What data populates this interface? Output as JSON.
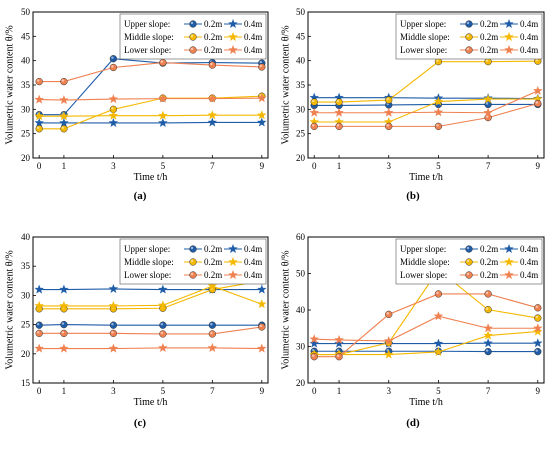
{
  "colors": {
    "blue": "#1f5ca8",
    "yellow": "#f5b800",
    "orange": "#ef8050"
  },
  "legend": {
    "rows": [
      {
        "label": "Upper  slope:",
        "color": "#1f5ca8"
      },
      {
        "label": "Middle slope:",
        "color": "#f5b800"
      },
      {
        "label": "Lower  slope:",
        "color": "#ef8050"
      }
    ],
    "depth_02": "0.2m",
    "depth_04": "0.4m"
  },
  "chart_data": [
    {
      "type": "line",
      "panel_label": "(a)",
      "xlabel": "Time t/h",
      "ylabel": "Volumetric water content θ/%",
      "x": [
        0,
        1,
        3,
        5,
        7,
        9
      ],
      "xticks": [
        "0",
        "1",
        "3",
        "5",
        "7",
        "9"
      ],
      "ylim": [
        20,
        50
      ],
      "yticks": [
        20,
        25,
        30,
        35,
        40,
        45,
        50
      ],
      "series": [
        {
          "slope": "upper",
          "depth": "0.2m",
          "marker": "circle",
          "values": [
            28.9,
            28.9,
            40.4,
            39.5,
            39.6,
            39.5
          ]
        },
        {
          "slope": "upper",
          "depth": "0.4m",
          "marker": "star",
          "values": [
            27.2,
            27.2,
            27.2,
            27.2,
            27.3,
            27.3
          ]
        },
        {
          "slope": "middle",
          "depth": "0.2m",
          "marker": "circle",
          "values": [
            26.0,
            26.0,
            30.0,
            32.3,
            32.3,
            32.7
          ]
        },
        {
          "slope": "middle",
          "depth": "0.4m",
          "marker": "star",
          "values": [
            28.6,
            28.6,
            28.7,
            28.7,
            28.8,
            28.8
          ]
        },
        {
          "slope": "lower",
          "depth": "0.2m",
          "marker": "circle",
          "values": [
            35.7,
            35.7,
            38.6,
            39.6,
            39.1,
            38.7
          ]
        },
        {
          "slope": "lower",
          "depth": "0.4m",
          "marker": "star",
          "values": [
            32.0,
            31.9,
            32.1,
            32.2,
            32.2,
            32.3
          ]
        }
      ]
    },
    {
      "type": "line",
      "panel_label": "(b)",
      "xlabel": "Time t/h",
      "ylabel": "Volumetric water content θ/%",
      "x": [
        0,
        1,
        3,
        5,
        7,
        9
      ],
      "xticks": [
        "0",
        "1",
        "3",
        "5",
        "7",
        "9"
      ],
      "ylim": [
        20,
        50
      ],
      "yticks": [
        20,
        25,
        30,
        35,
        40,
        45,
        50
      ],
      "series": [
        {
          "slope": "upper",
          "depth": "0.2m",
          "marker": "circle",
          "values": [
            30.8,
            30.8,
            30.9,
            31.0,
            31.0,
            31.0
          ]
        },
        {
          "slope": "upper",
          "depth": "0.4m",
          "marker": "star",
          "values": [
            32.4,
            32.4,
            32.4,
            32.3,
            32.3,
            32.2
          ]
        },
        {
          "slope": "middle",
          "depth": "0.2m",
          "marker": "circle",
          "values": [
            31.5,
            31.5,
            31.9,
            39.8,
            39.8,
            39.9
          ]
        },
        {
          "slope": "middle",
          "depth": "0.4m",
          "marker": "star",
          "values": [
            27.4,
            27.4,
            27.4,
            31.6,
            32.1,
            32.1
          ]
        },
        {
          "slope": "lower",
          "depth": "0.2m",
          "marker": "circle",
          "values": [
            26.5,
            26.5,
            26.5,
            26.5,
            28.3,
            31.2
          ]
        },
        {
          "slope": "lower",
          "depth": "0.4m",
          "marker": "star",
          "values": [
            29.3,
            29.3,
            29.3,
            29.4,
            29.3,
            33.8
          ]
        }
      ]
    },
    {
      "type": "line",
      "panel_label": "(c)",
      "xlabel": "Time t/h",
      "ylabel": "Volumetric water content θ/%",
      "x": [
        0,
        1,
        3,
        5,
        7,
        9
      ],
      "xticks": [
        "0",
        "1",
        "3",
        "5",
        "7",
        "9"
      ],
      "ylim": [
        15,
        40
      ],
      "yticks": [
        15,
        20,
        25,
        30,
        35,
        40
      ],
      "series": [
        {
          "slope": "upper",
          "depth": "0.2m",
          "marker": "circle",
          "values": [
            24.9,
            25.0,
            24.9,
            24.9,
            24.9,
            24.9
          ]
        },
        {
          "slope": "upper",
          "depth": "0.4m",
          "marker": "star",
          "values": [
            31.0,
            31.0,
            31.1,
            31.0,
            31.0,
            31.0
          ]
        },
        {
          "slope": "middle",
          "depth": "0.2m",
          "marker": "circle",
          "values": [
            27.7,
            27.7,
            27.7,
            27.8,
            31.0,
            32.5
          ]
        },
        {
          "slope": "middle",
          "depth": "0.4m",
          "marker": "star",
          "values": [
            28.2,
            28.2,
            28.2,
            28.3,
            31.6,
            28.5
          ]
        },
        {
          "slope": "lower",
          "depth": "0.2m",
          "marker": "circle",
          "values": [
            23.5,
            23.5,
            23.5,
            23.4,
            23.4,
            24.6
          ]
        },
        {
          "slope": "lower",
          "depth": "0.4m",
          "marker": "star",
          "values": [
            20.9,
            20.9,
            20.9,
            21.0,
            21.0,
            20.9
          ]
        }
      ]
    },
    {
      "type": "line",
      "panel_label": "(d)",
      "xlabel": "Time t/h",
      "ylabel": "Volumetric water content θ/%",
      "x": [
        0,
        1,
        3,
        5,
        7,
        9
      ],
      "xticks": [
        "0",
        "1",
        "3",
        "5",
        "7",
        "9"
      ],
      "ylim": [
        20,
        60
      ],
      "yticks": [
        20,
        30,
        40,
        50,
        60
      ],
      "series": [
        {
          "slope": "upper",
          "depth": "0.2m",
          "marker": "circle",
          "values": [
            28.7,
            28.7,
            28.7,
            28.7,
            28.6,
            28.6
          ]
        },
        {
          "slope": "upper",
          "depth": "0.4m",
          "marker": "star",
          "values": [
            30.8,
            30.8,
            30.8,
            30.8,
            30.9,
            30.9
          ]
        },
        {
          "slope": "middle",
          "depth": "0.2m",
          "marker": "circle",
          "values": [
            27.8,
            27.8,
            31.0,
            51.0,
            40.1,
            37.8
          ]
        },
        {
          "slope": "middle",
          "depth": "0.4m",
          "marker": "star",
          "values": [
            27.8,
            27.8,
            27.8,
            28.5,
            33.0,
            34.1
          ]
        },
        {
          "slope": "lower",
          "depth": "0.2m",
          "marker": "circle",
          "values": [
            27.2,
            27.2,
            38.8,
            44.4,
            44.4,
            40.6
          ]
        },
        {
          "slope": "lower",
          "depth": "0.4m",
          "marker": "star",
          "values": [
            32.0,
            31.8,
            31.5,
            38.3,
            35.0,
            35.0
          ]
        }
      ]
    }
  ]
}
